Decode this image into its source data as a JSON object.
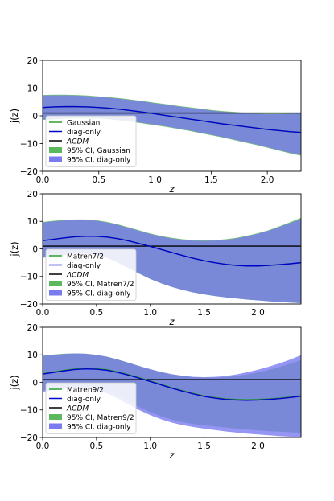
{
  "chart_data": [
    {
      "type": "line",
      "xlabel": "z",
      "ylabel": "j(z)",
      "xlim": [
        0.0,
        2.3
      ],
      "ylim": [
        -20,
        20
      ],
      "xticks": [
        0.0,
        0.5,
        1.0,
        1.5,
        2.0
      ],
      "xtick_labels": [
        "0.0",
        "0.5",
        "1.0",
        "1.5",
        "2.0"
      ],
      "yticks": [
        -20,
        -10,
        0,
        10,
        20
      ],
      "ytick_labels": [
        "−20",
        "−10",
        "0",
        "10",
        "20"
      ],
      "legend_position": "lower-left",
      "x": [
        0.0,
        0.1,
        0.2,
        0.3,
        0.4,
        0.5,
        0.6,
        0.7,
        0.8,
        0.9,
        1.0,
        1.1,
        1.2,
        1.3,
        1.4,
        1.5,
        1.6,
        1.7,
        1.8,
        1.9,
        2.0,
        2.1,
        2.2,
        2.3
      ],
      "series": [
        {
          "name": "Gaussian",
          "kind": "line",
          "color": "#2ca02c",
          "values": [
            3.0,
            3.2,
            3.3,
            3.3,
            3.2,
            3.0,
            2.7,
            2.3,
            1.8,
            1.3,
            0.7,
            0.1,
            -0.5,
            -1.1,
            -1.7,
            -2.3,
            -2.9,
            -3.4,
            -3.9,
            -4.4,
            -4.9,
            -5.3,
            -5.7,
            -6.0
          ]
        },
        {
          "name": "diag-only",
          "kind": "line",
          "color": "#0000cc",
          "values": [
            3.0,
            3.2,
            3.3,
            3.3,
            3.2,
            3.0,
            2.7,
            2.3,
            1.8,
            1.3,
            0.7,
            0.1,
            -0.5,
            -1.1,
            -1.7,
            -2.3,
            -2.9,
            -3.4,
            -3.9,
            -4.4,
            -4.9,
            -5.3,
            -5.7,
            -6.0
          ]
        },
        {
          "name": "ΛCDM",
          "kind": "hline",
          "color": "#000000",
          "value": 1
        },
        {
          "name": "95% CI, Gaussian",
          "kind": "band",
          "color": "#5cb85c",
          "upper": [
            7.5,
            7.6,
            7.6,
            7.5,
            7.3,
            7.0,
            6.7,
            6.3,
            5.8,
            5.3,
            4.7,
            4.2,
            3.6,
            3.1,
            2.6,
            2.1,
            1.7,
            1.4,
            1.1,
            0.9,
            0.8,
            0.8,
            0.9,
            1.1
          ],
          "lower": [
            -1.5,
            -1.3,
            -1.0,
            -0.9,
            -0.9,
            -1.0,
            -1.3,
            -1.7,
            -2.2,
            -2.8,
            -3.4,
            -4.0,
            -4.7,
            -5.4,
            -6.2,
            -7.0,
            -7.8,
            -8.7,
            -9.6,
            -10.5,
            -11.5,
            -12.5,
            -13.5,
            -14.4
          ]
        },
        {
          "name": "95% CI, diag-only",
          "kind": "band",
          "color": "#7b7bf0",
          "upper": [
            7.3,
            7.4,
            7.4,
            7.3,
            7.1,
            6.8,
            6.5,
            6.1,
            5.6,
            5.1,
            4.5,
            4.0,
            3.4,
            2.9,
            2.4,
            1.9,
            1.5,
            1.2,
            0.9,
            0.7,
            0.6,
            0.6,
            0.7,
            0.9
          ],
          "lower": [
            -1.3,
            -1.1,
            -0.8,
            -0.7,
            -0.7,
            -0.8,
            -1.1,
            -1.5,
            -2.0,
            -2.6,
            -3.2,
            -3.8,
            -4.5,
            -5.2,
            -6.0,
            -6.8,
            -7.6,
            -8.5,
            -9.4,
            -10.3,
            -11.3,
            -12.3,
            -13.3,
            -14.0
          ]
        }
      ]
    },
    {
      "type": "line",
      "xlabel": "z",
      "ylabel": "j(z)",
      "xlim": [
        0.0,
        2.4
      ],
      "ylim": [
        -20,
        20
      ],
      "xticks": [
        0.0,
        0.5,
        1.0,
        1.5,
        2.0
      ],
      "xtick_labels": [
        "0.0",
        "0.5",
        "1.0",
        "1.5",
        "2.0"
      ],
      "yticks": [
        -20,
        -10,
        0,
        10,
        20
      ],
      "ytick_labels": [
        "−20",
        "−10",
        "0",
        "10",
        "20"
      ],
      "legend_position": "lower-left",
      "x": [
        0.0,
        0.1,
        0.2,
        0.3,
        0.4,
        0.5,
        0.6,
        0.7,
        0.8,
        0.9,
        1.0,
        1.1,
        1.2,
        1.3,
        1.4,
        1.5,
        1.6,
        1.7,
        1.8,
        1.9,
        2.0,
        2.1,
        2.2,
        2.3,
        2.4
      ],
      "series": [
        {
          "name": "Matren7/2",
          "kind": "line",
          "color": "#2ca02c",
          "values": [
            3.0,
            3.5,
            4.0,
            4.4,
            4.6,
            4.6,
            4.3,
            3.7,
            2.9,
            1.9,
            0.9,
            -0.2,
            -1.3,
            -2.4,
            -3.4,
            -4.3,
            -5.0,
            -5.6,
            -6.0,
            -6.2,
            -6.2,
            -6.0,
            -5.7,
            -5.4,
            -5.0
          ]
        },
        {
          "name": "diag-only",
          "kind": "line",
          "color": "#0000cc",
          "values": [
            3.0,
            3.5,
            4.0,
            4.4,
            4.6,
            4.6,
            4.3,
            3.7,
            2.9,
            1.9,
            0.9,
            -0.2,
            -1.3,
            -2.4,
            -3.4,
            -4.3,
            -5.0,
            -5.6,
            -6.0,
            -6.2,
            -6.2,
            -6.0,
            -5.7,
            -5.4,
            -5.0
          ]
        },
        {
          "name": "ΛCDM",
          "kind": "hline",
          "color": "#000000",
          "value": 1
        },
        {
          "name": "95% CI, Matren7/2",
          "kind": "band",
          "color": "#5cb85c",
          "upper": [
            9.8,
            10.2,
            10.5,
            10.7,
            10.7,
            10.4,
            9.8,
            8.9,
            7.8,
            6.7,
            5.6,
            4.7,
            4.0,
            3.5,
            3.2,
            3.1,
            3.2,
            3.5,
            4.0,
            4.8,
            5.7,
            6.8,
            8.2,
            9.7,
            11.3
          ]
        },
        {
          "name": "95% CI, diag-only",
          "kind": "band",
          "color": "#7b7bf0",
          "upper": [
            9.6,
            10.0,
            10.3,
            10.5,
            10.5,
            10.2,
            9.6,
            8.7,
            7.6,
            6.5,
            5.4,
            4.5,
            3.8,
            3.3,
            3.0,
            2.9,
            3.0,
            3.3,
            3.8,
            4.6,
            5.5,
            6.6,
            8.0,
            9.4,
            10.8
          ],
          "lower": [
            -3.2,
            -2.7,
            -2.1,
            -1.7,
            -1.7,
            -2.2,
            -3.3,
            -5.0,
            -7.0,
            -9.0,
            -10.9,
            -12.5,
            -13.8,
            -14.9,
            -15.8,
            -16.5,
            -17.1,
            -17.6,
            -18.0,
            -18.4,
            -18.7,
            -19.0,
            -19.3,
            -19.5,
            -19.7
          ]
        }
      ]
    },
    {
      "type": "line",
      "xlabel": "z",
      "ylabel": "j(z)",
      "xlim": [
        0.0,
        2.4
      ],
      "ylim": [
        -20,
        20
      ],
      "xticks": [
        0.0,
        0.5,
        1.0,
        1.5,
        2.0
      ],
      "xtick_labels": [
        "0.0",
        "0.5",
        "1.0",
        "1.5",
        "2.0"
      ],
      "yticks": [
        -20,
        -10,
        0,
        10,
        20
      ],
      "ytick_labels": [
        "−20",
        "−10",
        "0",
        "10",
        "20"
      ],
      "legend_position": "lower-left",
      "x": [
        0.0,
        0.1,
        0.2,
        0.3,
        0.4,
        0.5,
        0.6,
        0.7,
        0.8,
        0.9,
        1.0,
        1.1,
        1.2,
        1.3,
        1.4,
        1.5,
        1.6,
        1.7,
        1.8,
        1.9,
        2.0,
        2.1,
        2.2,
        2.3,
        2.4
      ],
      "series": [
        {
          "name": "Matren9/2",
          "kind": "line",
          "color": "#2ca02c",
          "values": [
            3.2,
            3.8,
            4.4,
            4.9,
            5.1,
            5.0,
            4.6,
            3.8,
            2.8,
            1.7,
            0.5,
            -0.7,
            -1.9,
            -3.0,
            -4.0,
            -4.9,
            -5.5,
            -6.0,
            -6.2,
            -6.3,
            -6.2,
            -6.0,
            -5.7,
            -5.3,
            -4.8
          ]
        },
        {
          "name": "diag-only",
          "kind": "line",
          "color": "#0000cc",
          "values": [
            3.0,
            3.6,
            4.2,
            4.7,
            4.9,
            4.8,
            4.4,
            3.6,
            2.6,
            1.5,
            0.3,
            -0.9,
            -2.1,
            -3.2,
            -4.2,
            -5.1,
            -5.7,
            -6.2,
            -6.4,
            -6.5,
            -6.4,
            -6.2,
            -5.9,
            -5.5,
            -5.0
          ]
        },
        {
          "name": "ΛCDM",
          "kind": "hline",
          "color": "#000000",
          "value": 1
        },
        {
          "name": "95% CI, Matren9/2",
          "kind": "band",
          "color": "#5cb85c",
          "upper": [
            9.7,
            10.1,
            10.4,
            10.5,
            10.4,
            10.0,
            9.3,
            8.3,
            7.1,
            5.9,
            4.7,
            3.7,
            2.9,
            2.3,
            1.9,
            1.7,
            1.7,
            1.9,
            2.3,
            2.9,
            3.6,
            4.5,
            5.6,
            6.8,
            8.1
          ],
          "lower": [
            -3.0,
            -2.5,
            -1.9,
            -1.5,
            -1.5,
            -2.0,
            -3.2,
            -5.0,
            -7.0,
            -9.0,
            -10.8,
            -12.3,
            -13.5,
            -14.4,
            -15.1,
            -15.6,
            -16.0,
            -16.4,
            -16.8,
            -17.1,
            -17.4,
            -17.7,
            -17.9,
            -18.1,
            -18.3
          ]
        },
        {
          "name": "95% CI, diag-only",
          "kind": "band",
          "color": "#7b7bf0",
          "upper": [
            9.6,
            10.0,
            10.3,
            10.5,
            10.4,
            10.0,
            9.3,
            8.3,
            7.1,
            5.9,
            4.8,
            3.8,
            3.0,
            2.4,
            2.0,
            1.9,
            2.0,
            2.3,
            2.9,
            3.7,
            4.6,
            5.7,
            6.9,
            8.3,
            9.9
          ],
          "lower": [
            -3.4,
            -2.9,
            -2.4,
            -2.0,
            -2.1,
            -2.8,
            -4.1,
            -6.0,
            -8.1,
            -10.1,
            -11.9,
            -13.4,
            -14.6,
            -15.5,
            -16.2,
            -16.8,
            -17.3,
            -17.8,
            -18.2,
            -18.6,
            -18.9,
            -19.2,
            -19.5,
            -19.7,
            -19.9
          ]
        }
      ]
    }
  ]
}
